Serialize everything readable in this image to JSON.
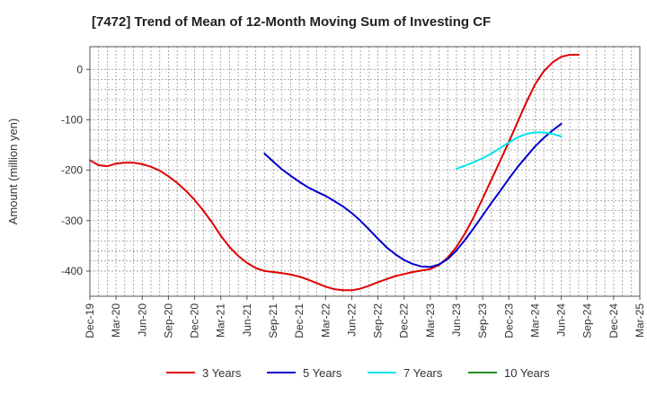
{
  "chart_data": {
    "type": "line",
    "title": "[7472]  Trend of Mean of 12-Month Moving Sum of Investing CF",
    "xlabel": "",
    "ylabel": "Amount (million yen)",
    "ylim": [
      -450,
      45
    ],
    "yticks": [
      0,
      -100,
      -200,
      -300,
      -400
    ],
    "x_tick_labels": [
      "Dec-19",
      "Mar-20",
      "Jun-20",
      "Sep-20",
      "Dec-20",
      "Mar-21",
      "Jun-21",
      "Sep-21",
      "Dec-21",
      "Mar-22",
      "Jun-22",
      "Sep-22",
      "Dec-22",
      "Mar-23",
      "Jun-23",
      "Sep-23",
      "Dec-23",
      "Mar-24",
      "Jun-24",
      "Sep-24",
      "Dec-24",
      "Mar-25"
    ],
    "grid": true,
    "legend_position": "bottom",
    "series": [
      {
        "name": "3 Years",
        "color": "#e00000",
        "points": [
          [
            0,
            -180
          ],
          [
            0.33,
            -190
          ],
          [
            0.67,
            -192
          ],
          [
            1,
            -187
          ],
          [
            1.33,
            -185
          ],
          [
            1.67,
            -185
          ],
          [
            2,
            -188
          ],
          [
            2.33,
            -193
          ],
          [
            2.67,
            -201
          ],
          [
            3,
            -212
          ],
          [
            3.33,
            -225
          ],
          [
            3.67,
            -241
          ],
          [
            4,
            -259
          ],
          [
            4.33,
            -280
          ],
          [
            4.67,
            -304
          ],
          [
            5,
            -330
          ],
          [
            5.33,
            -352
          ],
          [
            5.67,
            -370
          ],
          [
            6,
            -384
          ],
          [
            6.33,
            -394
          ],
          [
            6.67,
            -400
          ],
          [
            7,
            -402
          ],
          [
            7.33,
            -404
          ],
          [
            7.67,
            -407
          ],
          [
            8,
            -411
          ],
          [
            8.33,
            -417
          ],
          [
            8.67,
            -424
          ],
          [
            9,
            -431
          ],
          [
            9.33,
            -436
          ],
          [
            9.67,
            -438
          ],
          [
            10,
            -438
          ],
          [
            10.33,
            -435
          ],
          [
            10.67,
            -429
          ],
          [
            11,
            -422
          ],
          [
            11.33,
            -416
          ],
          [
            11.67,
            -410
          ],
          [
            12,
            -406
          ],
          [
            12.33,
            -402
          ],
          [
            12.67,
            -399
          ],
          [
            13,
            -396
          ],
          [
            13.33,
            -388
          ],
          [
            13.67,
            -373
          ],
          [
            14,
            -352
          ],
          [
            14.33,
            -325
          ],
          [
            14.67,
            -292
          ],
          [
            15,
            -256
          ],
          [
            15.33,
            -219
          ],
          [
            15.67,
            -181
          ],
          [
            16,
            -144
          ],
          [
            16.33,
            -105
          ],
          [
            16.67,
            -65
          ],
          [
            17,
            -30
          ],
          [
            17.33,
            -4
          ],
          [
            17.67,
            14
          ],
          [
            18,
            25
          ],
          [
            18.33,
            29
          ],
          [
            18.67,
            29
          ]
        ]
      },
      {
        "name": "5 Years",
        "color": "#0000cc",
        "points": [
          [
            6.67,
            -167
          ],
          [
            7,
            -183
          ],
          [
            7.33,
            -198
          ],
          [
            7.67,
            -211
          ],
          [
            8,
            -223
          ],
          [
            8.33,
            -234
          ],
          [
            8.67,
            -243
          ],
          [
            9,
            -251
          ],
          [
            9.33,
            -261
          ],
          [
            9.67,
            -272
          ],
          [
            10,
            -285
          ],
          [
            10.33,
            -300
          ],
          [
            10.67,
            -318
          ],
          [
            11,
            -336
          ],
          [
            11.33,
            -353
          ],
          [
            11.67,
            -367
          ],
          [
            12,
            -378
          ],
          [
            12.33,
            -386
          ],
          [
            12.67,
            -391
          ],
          [
            13,
            -392
          ],
          [
            13.33,
            -387
          ],
          [
            13.67,
            -376
          ],
          [
            14,
            -359
          ],
          [
            14.33,
            -338
          ],
          [
            14.67,
            -314
          ],
          [
            15,
            -290
          ],
          [
            15.33,
            -265
          ],
          [
            15.67,
            -241
          ],
          [
            16,
            -217
          ],
          [
            16.33,
            -194
          ],
          [
            16.67,
            -173
          ],
          [
            17,
            -153
          ],
          [
            17.33,
            -136
          ],
          [
            17.67,
            -121
          ],
          [
            18,
            -108
          ]
        ]
      },
      {
        "name": "7 Years",
        "color": "#00e5ee",
        "points": [
          [
            14,
            -197
          ],
          [
            14.33,
            -191
          ],
          [
            14.67,
            -184
          ],
          [
            15,
            -176
          ],
          [
            15.33,
            -167
          ],
          [
            15.67,
            -156
          ],
          [
            16,
            -145
          ],
          [
            16.33,
            -135
          ],
          [
            16.67,
            -128
          ],
          [
            17,
            -125
          ],
          [
            17.33,
            -125
          ],
          [
            17.67,
            -128
          ],
          [
            18,
            -133
          ]
        ]
      },
      {
        "name": "10 Years",
        "color": "#228b22",
        "points": []
      }
    ]
  }
}
